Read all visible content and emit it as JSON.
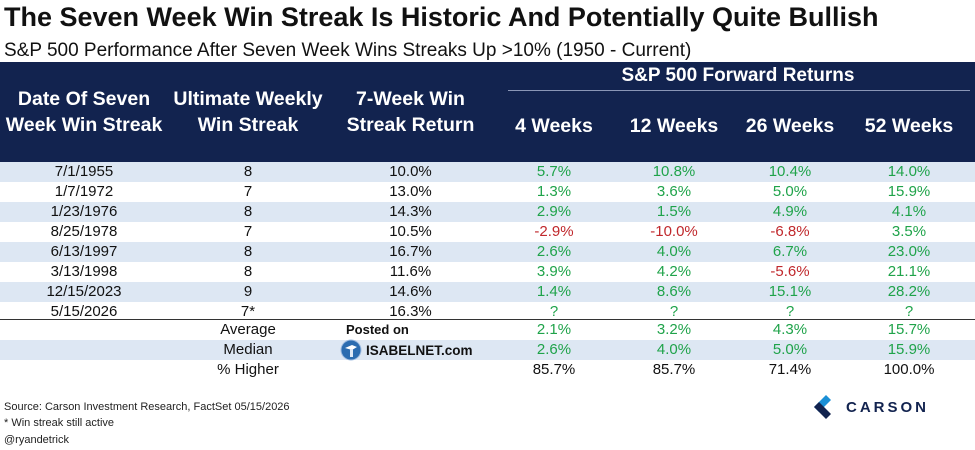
{
  "title": "The Seven Week Win Streak Is Historic And Potentially Quite Bullish",
  "subtitle": "S&P 500 Performance After Seven Week Wins Streaks Up >10% (1950 - Current)",
  "header": {
    "forward_returns": "S&P 500 Forward Returns",
    "date_col": "Date Of Seven Week Win Streak",
    "ultimate_col": "Ultimate Weekly Win Streak",
    "return_col": "7-Week Win Streak Return",
    "w4": "4 Weeks",
    "w12": "12 Weeks",
    "w26": "26 Weeks",
    "w52": "52 Weeks"
  },
  "rows": [
    {
      "date": "7/1/1955",
      "streak": "8",
      "ret": "10.0%",
      "w4": "5.7%",
      "w12": "10.8%",
      "w26": "10.4%",
      "w52": "14.0%"
    },
    {
      "date": "1/7/1972",
      "streak": "7",
      "ret": "13.0%",
      "w4": "1.3%",
      "w12": "3.6%",
      "w26": "5.0%",
      "w52": "15.9%"
    },
    {
      "date": "1/23/1976",
      "streak": "8",
      "ret": "14.3%",
      "w4": "2.9%",
      "w12": "1.5%",
      "w26": "4.9%",
      "w52": "4.1%"
    },
    {
      "date": "8/25/1978",
      "streak": "7",
      "ret": "10.5%",
      "w4": "-2.9%",
      "w12": "-10.0%",
      "w26": "-6.8%",
      "w52": "3.5%"
    },
    {
      "date": "6/13/1997",
      "streak": "8",
      "ret": "16.7%",
      "w4": "2.6%",
      "w12": "4.0%",
      "w26": "6.7%",
      "w52": "23.0%"
    },
    {
      "date": "3/13/1998",
      "streak": "8",
      "ret": "11.6%",
      "w4": "3.9%",
      "w12": "4.2%",
      "w26": "-5.6%",
      "w52": "21.1%"
    },
    {
      "date": "12/15/2023",
      "streak": "9",
      "ret": "14.6%",
      "w4": "1.4%",
      "w12": "8.6%",
      "w26": "15.1%",
      "w52": "28.2%"
    },
    {
      "date": "5/15/2026",
      "streak": "7*",
      "ret": "16.3%",
      "w4": "?",
      "w12": "?",
      "w26": "?",
      "w52": "?"
    }
  ],
  "stats": [
    {
      "label": "Average",
      "w4": "2.1%",
      "w12": "3.2%",
      "w26": "4.3%",
      "w52": "15.7%"
    },
    {
      "label": "Median",
      "w4": "2.6%",
      "w12": "4.0%",
      "w26": "5.0%",
      "w52": "15.9%"
    },
    {
      "label": "% Higher",
      "w4": "85.7%",
      "w12": "85.7%",
      "w26": "71.4%",
      "w52": "100.0%"
    }
  ],
  "watermark": {
    "posted": "Posted on",
    "site": "ISABELNET.com"
  },
  "footer": {
    "source": "Source: Carson Investment Research, FactSet 05/15/2026",
    "note": "* Win streak still active",
    "handle": "@ryandetrick"
  },
  "brand": "CARSON",
  "colors": {
    "header": "#12234f",
    "shade": "#dde7f3",
    "positive": "#1fa34a",
    "negative": "#c0282c"
  }
}
